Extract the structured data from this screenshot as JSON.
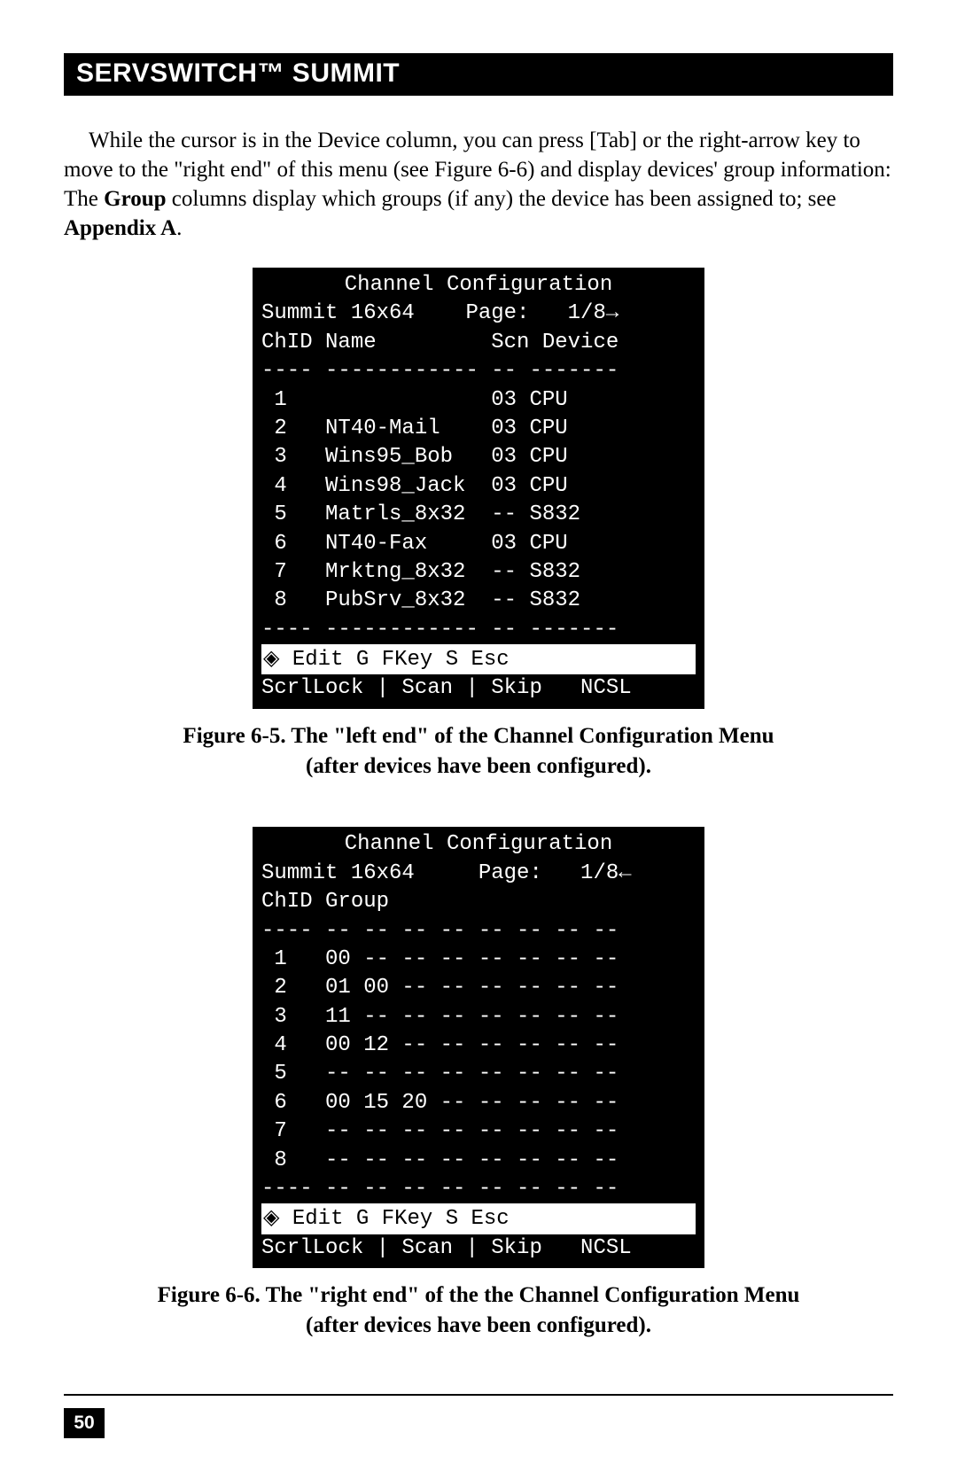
{
  "header": {
    "title": "SERVSWITCH™ SUMMIT"
  },
  "paragraph": {
    "pre": "While the cursor is in the Device column, you can press [Tab] or the right-arrow key to move to the \"right end\" of this menu (see Figure 6-6) and display devices' group information: The ",
    "bold1": "Group",
    "mid": " columns display which groups (if any) the device has been assigned to; see ",
    "bold2": "Appendix A",
    "post": "."
  },
  "terminal1": {
    "title": "Channel Configuration",
    "subtitle_left": "Summit 16x64",
    "subtitle_page_label": "Page:",
    "subtitle_page_value": "1/8",
    "arrow": "→",
    "columns_line": "ChID Name         Scn Device",
    "divider": "---- ------------ -- -------",
    "rows": [
      {
        "chid": "1",
        "name": "",
        "scn": "03",
        "device": "CPU"
      },
      {
        "chid": "2",
        "name": "NT40-Mail",
        "scn": "03",
        "device": "CPU"
      },
      {
        "chid": "3",
        "name": "Wins95_Bob",
        "scn": "03",
        "device": "CPU"
      },
      {
        "chid": "4",
        "name": "Wins98_Jack",
        "scn": "03",
        "device": "CPU"
      },
      {
        "chid": "5",
        "name": "Matrls_8x32",
        "scn": "--",
        "device": "S832"
      },
      {
        "chid": "6",
        "name": "NT40-Fax",
        "scn": "03",
        "device": "CPU"
      },
      {
        "chid": "7",
        "name": "Mrktng_8x32",
        "scn": "--",
        "device": "S832"
      },
      {
        "chid": "8",
        "name": "PubSrv_8x32",
        "scn": "--",
        "device": "S832"
      }
    ],
    "hint_icon": "◈",
    "hint_text": " Edit G FKey S Esc",
    "status": "ScrlLock | Scan | Skip   NCSL"
  },
  "caption1": {
    "line1": "Figure 6-5. The \"left end\" of the Channel Configuration Menu",
    "line2": "(after devices have been configured)."
  },
  "terminal2": {
    "title": "Channel Configuration",
    "subtitle_left": "Summit 16x64",
    "subtitle_page_label": "Page:",
    "subtitle_page_value": "1/8",
    "arrow": "←",
    "columns_line": "ChID Group",
    "divider": "---- -- -- -- -- -- -- -- --",
    "rows": [
      {
        "chid": "1",
        "groups": [
          "00",
          "--",
          "--",
          "--",
          "--",
          "--",
          "--",
          "--"
        ]
      },
      {
        "chid": "2",
        "groups": [
          "01",
          "00",
          "--",
          "--",
          "--",
          "--",
          "--",
          "--"
        ]
      },
      {
        "chid": "3",
        "groups": [
          "11",
          "--",
          "--",
          "--",
          "--",
          "--",
          "--",
          "--"
        ]
      },
      {
        "chid": "4",
        "groups": [
          "00",
          "12",
          "--",
          "--",
          "--",
          "--",
          "--",
          "--"
        ]
      },
      {
        "chid": "5",
        "groups": [
          "--",
          "--",
          "--",
          "--",
          "--",
          "--",
          "--",
          "--"
        ]
      },
      {
        "chid": "6",
        "groups": [
          "00",
          "15",
          "20",
          "--",
          "--",
          "--",
          "--",
          "--"
        ]
      },
      {
        "chid": "7",
        "groups": [
          "--",
          "--",
          "--",
          "--",
          "--",
          "--",
          "--",
          "--"
        ]
      },
      {
        "chid": "8",
        "groups": [
          "--",
          "--",
          "--",
          "--",
          "--",
          "--",
          "--",
          "--"
        ]
      }
    ],
    "hint_icon": "◈",
    "hint_text": " Edit G FKey S Esc",
    "status": "ScrlLock | Scan | Skip   NCSL"
  },
  "caption2": {
    "line1": "Figure 6-6. The \"right end\" of the the Channel Configuration Menu",
    "line2": "(after devices have been configured)."
  },
  "page_number": "50",
  "colors": {
    "page_bg": "#ffffff",
    "text": "#000000",
    "terminal_bg": "#000000",
    "terminal_fg": "#ffffff"
  },
  "typography": {
    "body_family": "Times New Roman",
    "body_size_pt": 19,
    "mono_family": "Courier New",
    "mono_size_pt": 18,
    "header_family": "Arial",
    "header_size_pt": 23
  }
}
